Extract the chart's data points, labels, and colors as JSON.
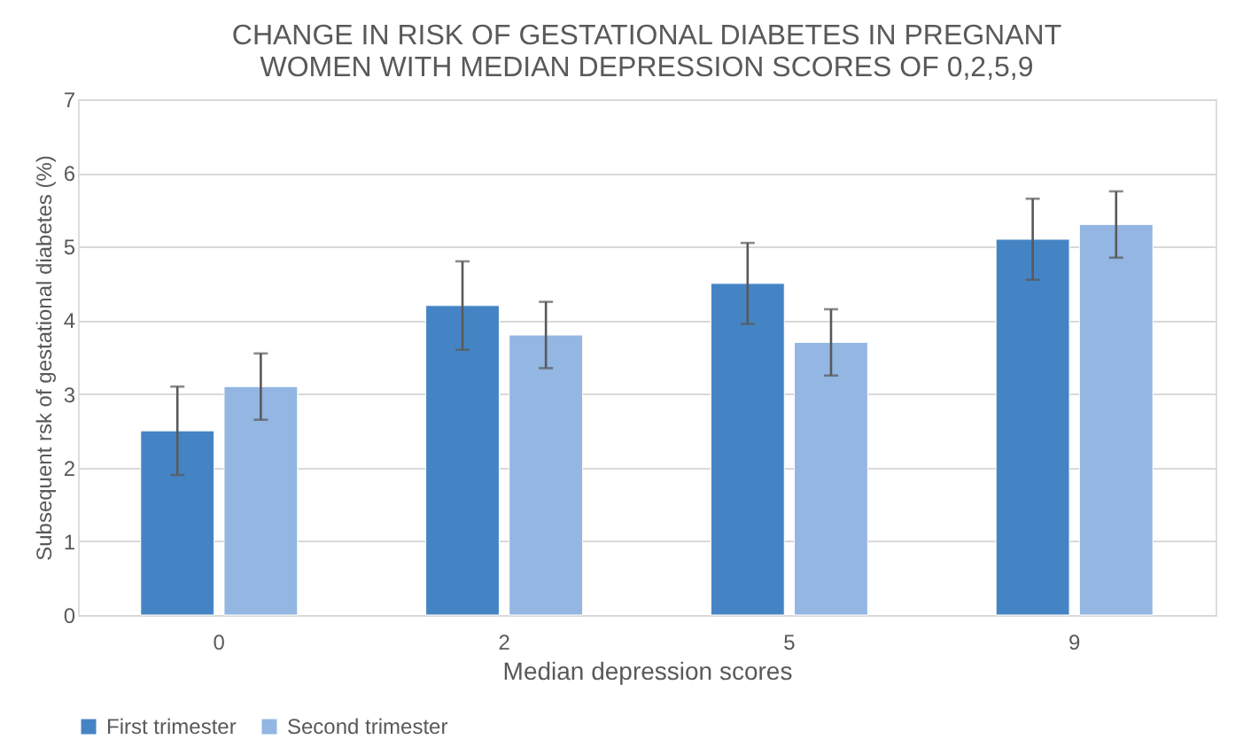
{
  "chart_data": {
    "type": "bar",
    "title": [
      "CHANGE IN RISK OF GESTATIONAL DIABETES IN PREGNANT",
      "WOMEN WITH MEDIAN DEPRESSION SCORES OF 0,2,5,9"
    ],
    "xlabel": "Median depression scores",
    "ylabel": "Subsequent rsk of gestational diabetes (%)",
    "categories": [
      "0",
      "2",
      "5",
      "9"
    ],
    "series": [
      {
        "name": "First trimester",
        "color": "#4584c4",
        "values": [
          2.5,
          4.2,
          4.5,
          5.1
        ],
        "errors": [
          0.6,
          0.6,
          0.55,
          0.55
        ]
      },
      {
        "name": "Second trimester",
        "color": "#93b6e3",
        "values": [
          3.1,
          3.8,
          3.7,
          5.3
        ],
        "errors": [
          0.45,
          0.45,
          0.45,
          0.45
        ]
      }
    ],
    "ylim": [
      0,
      7
    ],
    "yticks": [
      0,
      1,
      2,
      3,
      4,
      5,
      6,
      7
    ],
    "grid": "y",
    "legend": "bottom"
  }
}
